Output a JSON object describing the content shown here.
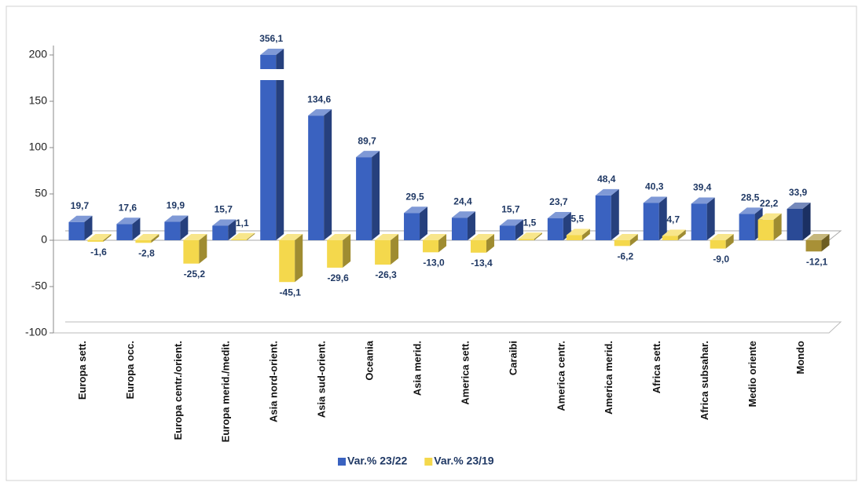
{
  "chart_data": {
    "type": "bar3d",
    "categories": [
      "Europa sett.",
      "Europa occ.",
      "Europa centr./orient.",
      "Europa merid./medit.",
      "Asia nord-orient.",
      "Asia sud-orient.",
      "Oceania",
      "Asia merid.",
      "America sett.",
      "Caraibi",
      "America centr.",
      "America merid.",
      "Africa sett.",
      "Africa subsahar.",
      "Medio oriente",
      "Mondo"
    ],
    "series": [
      {
        "name": "Var.% 23/22",
        "color": "#3a62c0",
        "colors": [
          "#3a62c0",
          "#3a62c0",
          "#3a62c0",
          "#3a62c0",
          "#3a62c0",
          "#3a62c0",
          "#3a62c0",
          "#3a62c0",
          "#3a62c0",
          "#3a62c0",
          "#3a62c0",
          "#3a62c0",
          "#3a62c0",
          "#3a62c0",
          "#3a62c0",
          "#2a4a96"
        ],
        "values": [
          19.7,
          17.6,
          19.9,
          15.7,
          356.1,
          134.6,
          89.7,
          29.5,
          24.4,
          15.7,
          23.7,
          48.4,
          40.3,
          39.4,
          28.5,
          33.9
        ],
        "value_labels": [
          "19,7",
          "17,6",
          "19,9",
          "15,7",
          "356,1",
          "134,6",
          "89,7",
          "29,5",
          "24,4",
          "15,7",
          "23,7",
          "48,4",
          "40,3",
          "39,4",
          "28,5",
          "33,9"
        ]
      },
      {
        "name": "Var.% 23/19",
        "color": "#f4d84c",
        "colors": [
          "#f4d84c",
          "#f4d84c",
          "#f4d84c",
          "#f4d84c",
          "#f4d84c",
          "#f4d84c",
          "#f4d84c",
          "#f4d84c",
          "#f4d84c",
          "#f4d84c",
          "#f4d84c",
          "#f4d84c",
          "#f4d84c",
          "#f4d84c",
          "#f4d84c",
          "#a89036"
        ],
        "values": [
          -1.6,
          -2.8,
          -25.2,
          1.1,
          -45.1,
          -29.6,
          -26.3,
          -13.0,
          -13.4,
          1.5,
          5.5,
          -6.2,
          4.7,
          -9.0,
          22.2,
          -12.1
        ],
        "value_labels": [
          "-1,6",
          "-2,8",
          "-25,2",
          "1,1",
          "-45,1",
          "-29,6",
          "-26,3",
          "-13,0",
          "-13,4",
          "1,5",
          "5,5",
          "-6,2",
          "4,7",
          "-9,0",
          "22,2",
          "-12,1"
        ]
      }
    ],
    "ylim": [
      -100,
      200
    ],
    "yticks": [
      -100,
      -50,
      0,
      50,
      100,
      150,
      200
    ],
    "legend": "bottom"
  }
}
